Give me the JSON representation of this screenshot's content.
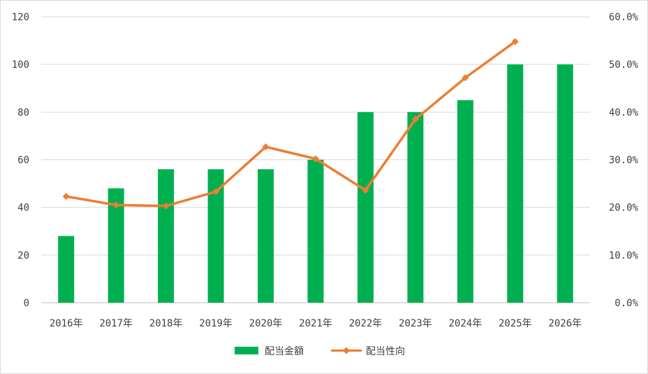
{
  "chart_data": {
    "type": "bar+line",
    "categories": [
      "2016年",
      "2017年",
      "2018年",
      "2019年",
      "2020年",
      "2021年",
      "2022年",
      "2023年",
      "2024年",
      "2025年",
      "2026年"
    ],
    "series": [
      {
        "name": "配当金額",
        "type": "bar",
        "axis": "left",
        "color": "#00b050",
        "values": [
          28,
          48,
          56,
          56,
          56,
          60,
          80,
          80,
          85,
          100,
          100
        ]
      },
      {
        "name": "配当性向",
        "type": "line",
        "axis": "right",
        "color": "#ed7d31",
        "marker": "diamond",
        "values": [
          22.3,
          20.5,
          20.3,
          23.3,
          32.7,
          30.2,
          23.6,
          38.5,
          47.2,
          54.8,
          null
        ]
      }
    ],
    "y_left": {
      "min": 0,
      "max": 120,
      "ticks": [
        "0",
        "20",
        "40",
        "60",
        "80",
        "100",
        "120"
      ]
    },
    "y_right": {
      "min": 0,
      "max": 60,
      "ticks": [
        "0.0%",
        "10.0%",
        "20.0%",
        "30.0%",
        "40.0%",
        "50.0%",
        "60.0%"
      ]
    },
    "grid": true,
    "legend_position": "bottom",
    "title": "",
    "xlabel": "",
    "ylabel": ""
  }
}
